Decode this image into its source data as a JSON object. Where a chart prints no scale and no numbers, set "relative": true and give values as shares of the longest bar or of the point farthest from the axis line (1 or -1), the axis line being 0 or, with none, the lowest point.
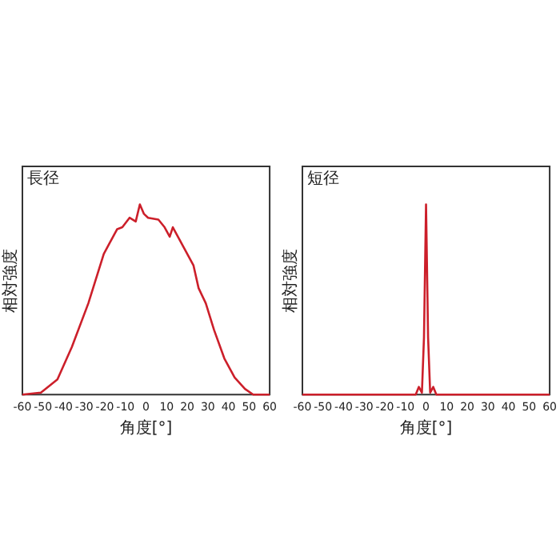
{
  "chart_data": [
    {
      "type": "line",
      "title": "長径",
      "xlabel": "角度[°]",
      "ylabel": "相対強度",
      "relative": true,
      "marker": "none",
      "xlim": [
        -60,
        60
      ],
      "xticks": [
        -60,
        -50,
        -40,
        -30,
        -20,
        -10,
        0,
        10,
        20,
        30,
        40,
        50,
        60
      ],
      "x": [
        -60,
        -51,
        -43,
        -36,
        -28,
        -20.5,
        -18,
        -14,
        -11.5,
        -8,
        -5,
        -3,
        -1,
        1,
        6,
        9,
        11.5,
        13,
        15,
        19,
        23,
        25.5,
        29,
        33,
        38,
        43,
        48,
        52,
        60
      ],
      "series": [
        {
          "color": "#cc1f2a",
          "values": [
            0,
            0.01,
            0.08,
            0.25,
            0.48,
            0.74,
            0.79,
            0.87,
            0.88,
            0.93,
            0.91,
            1,
            0.95,
            0.93,
            0.92,
            0.88,
            0.83,
            0.88,
            0.84,
            0.76,
            0.68,
            0.56,
            0.48,
            0.34,
            0.19,
            0.09,
            0.03,
            0,
            0
          ]
        }
      ]
    },
    {
      "type": "line",
      "title": "短径",
      "xlabel": "角度[°]",
      "ylabel": "相対強度",
      "relative": true,
      "marker": "none",
      "xlim": [
        -60,
        60
      ],
      "xticks": [
        -60,
        -50,
        -40,
        -30,
        -20,
        -10,
        0,
        10,
        20,
        30,
        40,
        50,
        60
      ],
      "x": [
        -60,
        -5,
        -3.5,
        -2,
        -1,
        0,
        1,
        2,
        3.5,
        5,
        60
      ],
      "series": [
        {
          "color": "#cc1f2a",
          "values": [
            0,
            0,
            0.04,
            0.01,
            0.3,
            1,
            0.3,
            0.01,
            0.04,
            0,
            0
          ]
        }
      ]
    }
  ]
}
